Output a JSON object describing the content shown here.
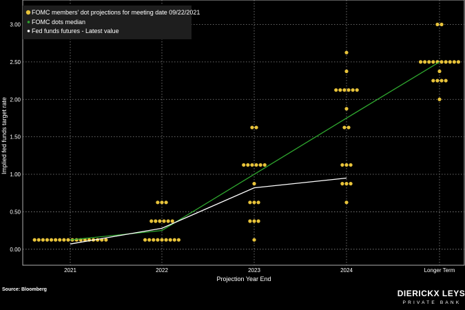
{
  "colors": {
    "background": "#000000",
    "grid": "#8c8c8c",
    "dot": "#e8c33a",
    "median_line": "#2fa82f",
    "futures_line": "#ffffff",
    "legend_bg": "#1e1e1e"
  },
  "source": "Source: Bloomberg",
  "brand": {
    "name": "DIERICKX LEYS",
    "tagline": "PRIVATE BANK"
  },
  "chart_data": {
    "type": "scatter",
    "xlabel": "Projection Year End",
    "ylabel": "Implied fed funds target rate",
    "categories": [
      "2021",
      "2022",
      "2023",
      "2024",
      "Longer Term"
    ],
    "ylim": [
      -0.25,
      3.1
    ],
    "yticks": [
      "0.00",
      "0.50",
      "1.00",
      "1.50",
      "2.00",
      "2.50",
      "3.00"
    ],
    "grid": true,
    "legend_position": "top-left",
    "series": [
      {
        "name": "FOMC members' dot projections for meeting date 09/22/2021",
        "kind": "dots",
        "points": [
          {
            "category": "2021",
            "y": 0.125,
            "count": 18
          },
          {
            "category": "2022",
            "y": 0.125,
            "count": 9
          },
          {
            "category": "2022",
            "y": 0.375,
            "count": 6
          },
          {
            "category": "2022",
            "y": 0.625,
            "count": 3
          },
          {
            "category": "2023",
            "y": 0.125,
            "count": 1
          },
          {
            "category": "2023",
            "y": 0.375,
            "count": 3
          },
          {
            "category": "2023",
            "y": 0.625,
            "count": 3
          },
          {
            "category": "2023",
            "y": 0.875,
            "count": 1
          },
          {
            "category": "2023",
            "y": 1.125,
            "count": 6
          },
          {
            "category": "2023",
            "y": 1.625,
            "count": 2
          },
          {
            "category": "2024",
            "y": 0.625,
            "count": 1
          },
          {
            "category": "2024",
            "y": 0.875,
            "count": 3
          },
          {
            "category": "2024",
            "y": 1.125,
            "count": 3
          },
          {
            "category": "2024",
            "y": 1.625,
            "count": 2
          },
          {
            "category": "2024",
            "y": 1.875,
            "count": 1
          },
          {
            "category": "2024",
            "y": 2.125,
            "count": 6
          },
          {
            "category": "2024",
            "y": 2.375,
            "count": 1
          },
          {
            "category": "2024",
            "y": 2.625,
            "count": 1
          },
          {
            "category": "Longer Term",
            "y": 2.0,
            "count": 1
          },
          {
            "category": "Longer Term",
            "y": 2.25,
            "count": 4
          },
          {
            "category": "Longer Term",
            "y": 2.375,
            "count": 1
          },
          {
            "category": "Longer Term",
            "y": 2.5,
            "count": 10
          },
          {
            "category": "Longer Term",
            "y": 3.0,
            "count": 2
          }
        ]
      },
      {
        "name": "FOMC dots median",
        "kind": "line",
        "values": [
          0.125,
          0.25,
          1.0,
          1.75,
          2.5
        ]
      },
      {
        "name": "Fed funds futures - Latest value",
        "kind": "line",
        "values": [
          0.07,
          0.28,
          0.82,
          0.95,
          null
        ]
      }
    ]
  }
}
